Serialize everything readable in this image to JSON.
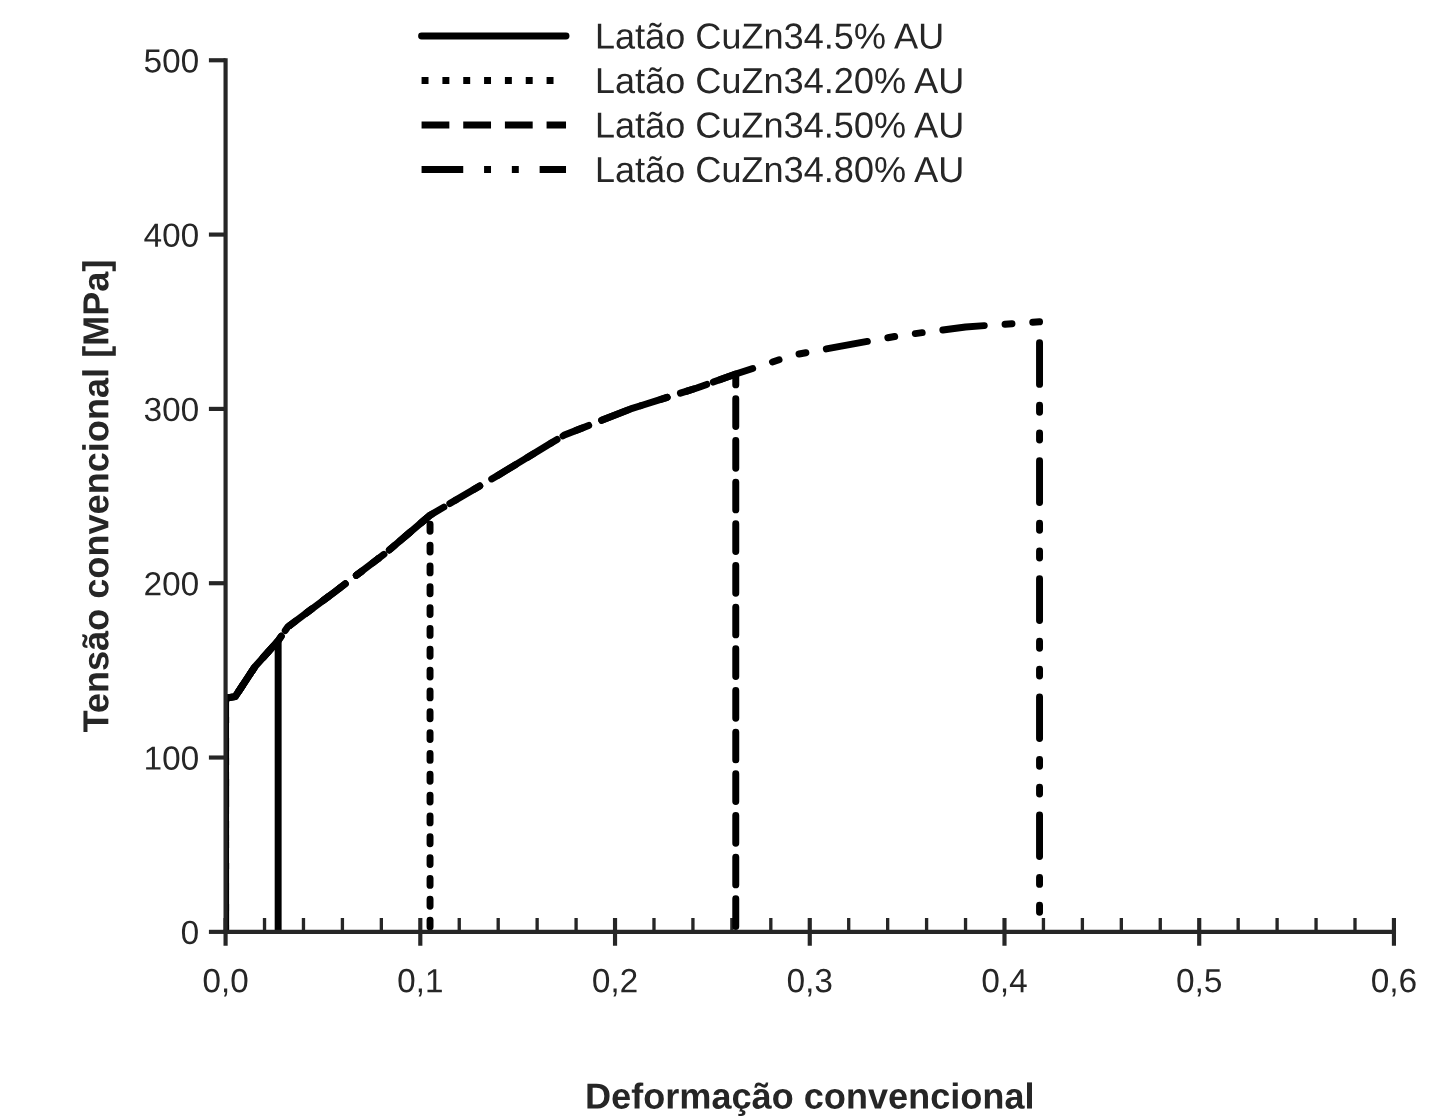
{
  "chart_data": {
    "type": "line",
    "xlabel": "Deformação convencional",
    "ylabel": "Tensão convencional [MPa]",
    "xlim": [
      0,
      0.6
    ],
    "ylim": [
      0,
      500
    ],
    "xticks": [
      {
        "value": 0,
        "label": "0,0"
      },
      {
        "value": 0.1,
        "label": "0,1"
      },
      {
        "value": 0.2,
        "label": "0,2"
      },
      {
        "value": 0.3,
        "label": "0,3"
      },
      {
        "value": 0.4,
        "label": "0,4"
      },
      {
        "value": 0.5,
        "label": "0,5"
      },
      {
        "value": 0.6,
        "label": "0,6"
      }
    ],
    "yticks": [
      0,
      100,
      200,
      300,
      400,
      500
    ],
    "grid": false,
    "legend": "top",
    "marker": "none",
    "series": [
      {
        "name": "Latão CuZn34.5% AU",
        "color": "#000000",
        "line_style": "solid",
        "x": [
          0,
          0,
          0.005,
          0.015,
          0.027,
          0.027
        ],
        "values": [
          0,
          134,
          135,
          152,
          167,
          0
        ]
      },
      {
        "name": "Latão CuZn34.20% AU",
        "color": "#000000",
        "line_style": "dotted",
        "x": [
          0,
          0,
          0.005,
          0.015,
          0.027,
          0.032,
          0.056,
          0.083,
          0.105,
          0.105
        ],
        "values": [
          0,
          134,
          135,
          152,
          167,
          175,
          195,
          218,
          239,
          0
        ]
      },
      {
        "name": "Latão CuZn34.50% AU",
        "color": "#000000",
        "line_style": "dashed",
        "x": [
          0,
          0,
          0.005,
          0.015,
          0.027,
          0.032,
          0.056,
          0.083,
          0.105,
          0.14,
          0.174,
          0.208,
          0.242,
          0.262,
          0.262
        ],
        "values": [
          0,
          134,
          135,
          152,
          167,
          175,
          195,
          218,
          239,
          262,
          285,
          300,
          312,
          320,
          0
        ]
      },
      {
        "name": "Latão CuZn34.80% AU",
        "color": "#000000",
        "line_style": "dashdot",
        "x": [
          0,
          0,
          0.005,
          0.015,
          0.027,
          0.032,
          0.056,
          0.083,
          0.105,
          0.14,
          0.174,
          0.208,
          0.242,
          0.262,
          0.292,
          0.326,
          0.346,
          0.38,
          0.418,
          0.418
        ],
        "values": [
          0,
          134,
          135,
          152,
          167,
          175,
          195,
          218,
          239,
          262,
          285,
          300,
          312,
          320,
          331,
          338,
          342,
          347,
          350,
          0
        ]
      }
    ]
  }
}
